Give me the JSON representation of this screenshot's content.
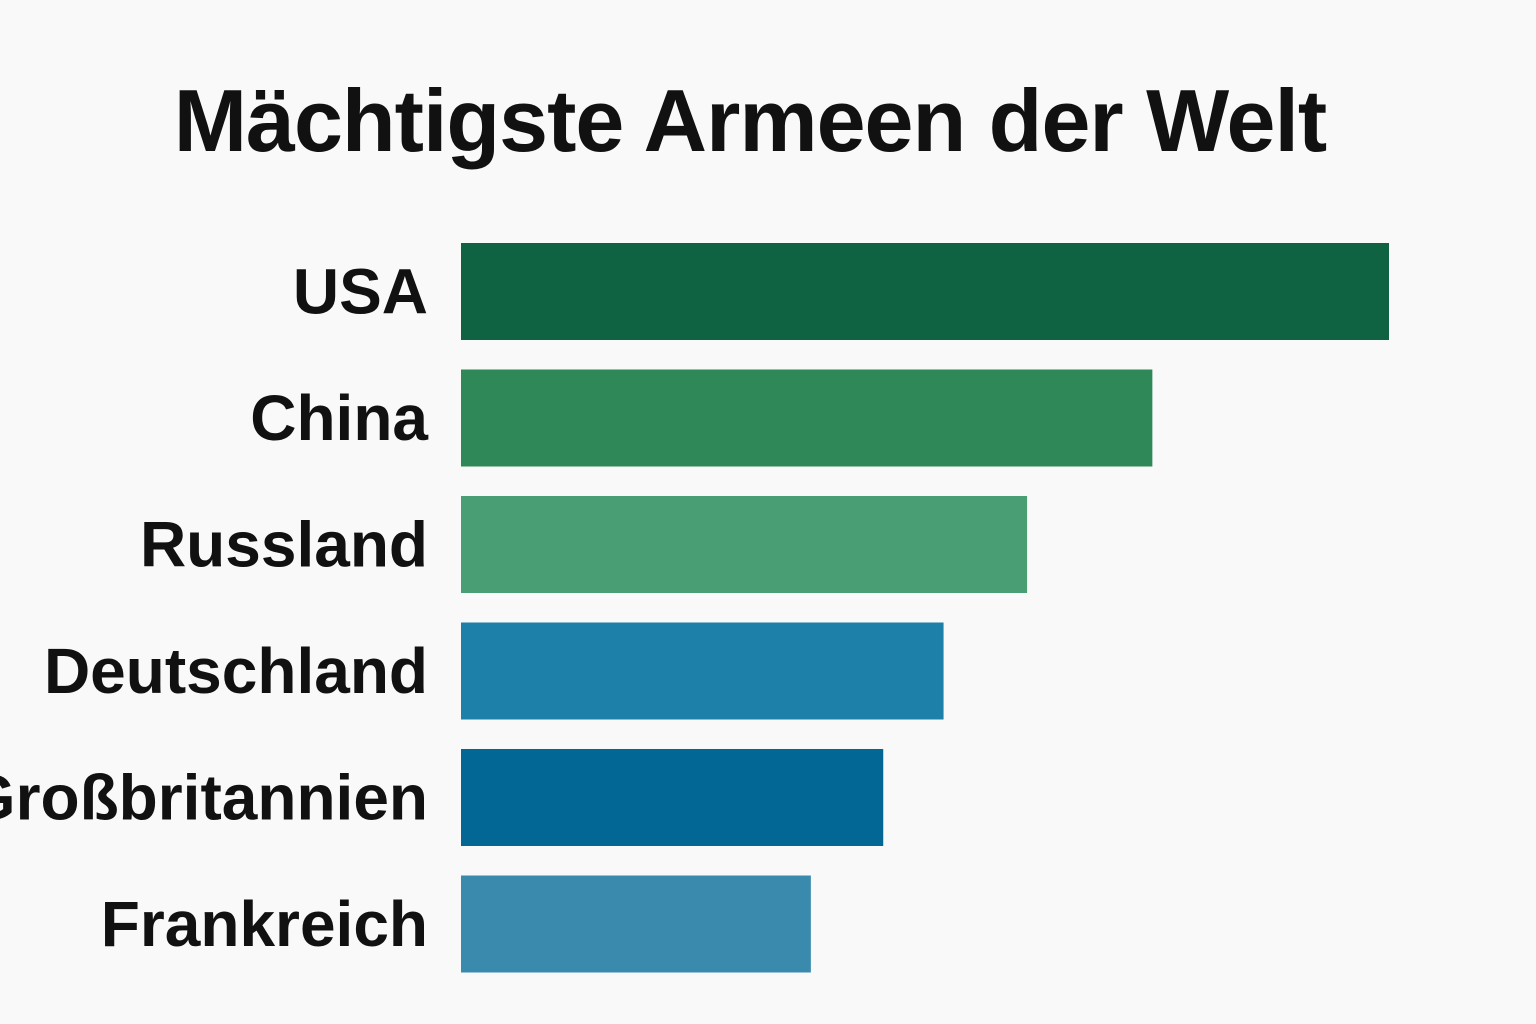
{
  "chart_data": {
    "type": "bar",
    "orientation": "horizontal",
    "title": "Mächtigste Armeen der Welt",
    "xlabel": "",
    "ylabel": "",
    "categories": [
      "USA",
      "China",
      "Russland",
      "Deutschland",
      "Großbritannien",
      "Frankreich"
    ],
    "values": [
      100,
      74.5,
      61,
      52,
      45.5,
      37.7
    ],
    "xlim": [
      0,
      100
    ],
    "colors": [
      "#0f6342",
      "#2e8857",
      "#4a9e73",
      "#1d80a8",
      "#036795",
      "#3a8aad"
    ],
    "grid": false,
    "legend": false,
    "value_axis_visible": false
  }
}
